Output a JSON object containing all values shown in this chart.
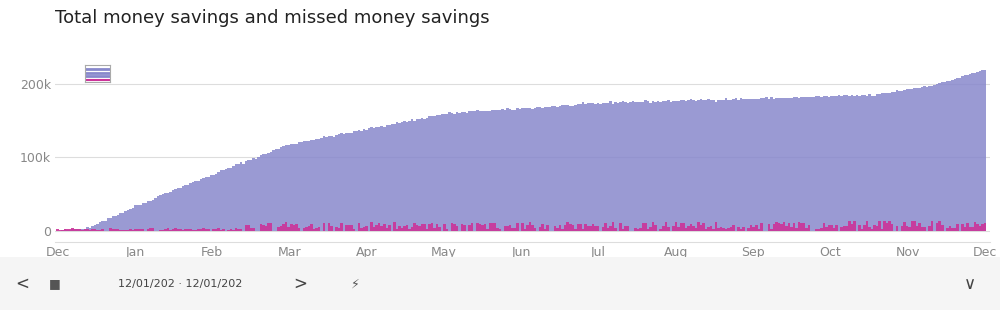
{
  "title": "Total money savings and missed money savings",
  "title_fontsize": 13,
  "title_color": "#222222",
  "background_color": "#ffffff",
  "plot_bg_color": "#ffffff",
  "bar_color_savings": "#8888cc",
  "bar_color_missed": "#cc3399",
  "yticks": [
    0,
    100000,
    200000
  ],
  "ytick_labels": [
    "0",
    "100k",
    "200k"
  ],
  "ylim": [
    -15000,
    230000
  ],
  "month_labels": [
    "Dec",
    "Jan",
    "Feb",
    "Mar",
    "Apr",
    "May",
    "Jun",
    "Jul",
    "Aug",
    "Sep",
    "Oct",
    "Nov",
    "Dec"
  ],
  "n_bars": 370,
  "grid_color": "#dddddd",
  "axis_color": "#aaaaaa",
  "tick_color": "#888888",
  "tick_fontsize": 9,
  "footer_text": "12/01/202 · 12/01/202",
  "nav_bar_color": "#f5f5f5"
}
